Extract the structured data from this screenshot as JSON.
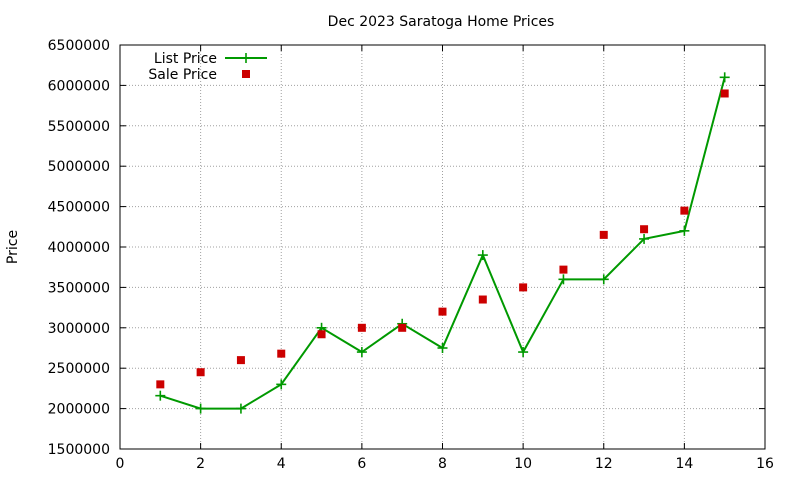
{
  "chart_data": {
    "type": "line",
    "title": "Dec 2023 Saratoga Home Prices",
    "xlabel": "",
    "ylabel": "Price",
    "xlim": [
      0,
      16
    ],
    "ylim": [
      1500000,
      6500000
    ],
    "xticks": [
      0,
      2,
      4,
      6,
      8,
      10,
      12,
      14,
      16
    ],
    "yticks": [
      1500000,
      2000000,
      2500000,
      3000000,
      3500000,
      4000000,
      4500000,
      5000000,
      5500000,
      6000000,
      6500000
    ],
    "grid": true,
    "legend_position": "top-left",
    "series": [
      {
        "name": "List Price",
        "style": "line-plus",
        "color": "#009900",
        "x": [
          1,
          2,
          3,
          4,
          5,
          6,
          7,
          8,
          9,
          10,
          11,
          12,
          13,
          14,
          15
        ],
        "y": [
          2160000,
          2000000,
          2000000,
          2300000,
          3000000,
          2700000,
          3050000,
          2750000,
          3900000,
          2700000,
          3600000,
          3600000,
          4100000,
          4200000,
          6100000
        ]
      },
      {
        "name": "Sale Price",
        "style": "square",
        "color": "#cc0000",
        "x": [
          1,
          2,
          3,
          4,
          5,
          6,
          7,
          8,
          9,
          10,
          11,
          12,
          13,
          14,
          15
        ],
        "y": [
          2300000,
          2450000,
          2600000,
          2680000,
          2920000,
          3000000,
          3000000,
          3200000,
          3350000,
          3500000,
          3720000,
          4150000,
          4220000,
          4450000,
          5900000
        ]
      }
    ]
  }
}
